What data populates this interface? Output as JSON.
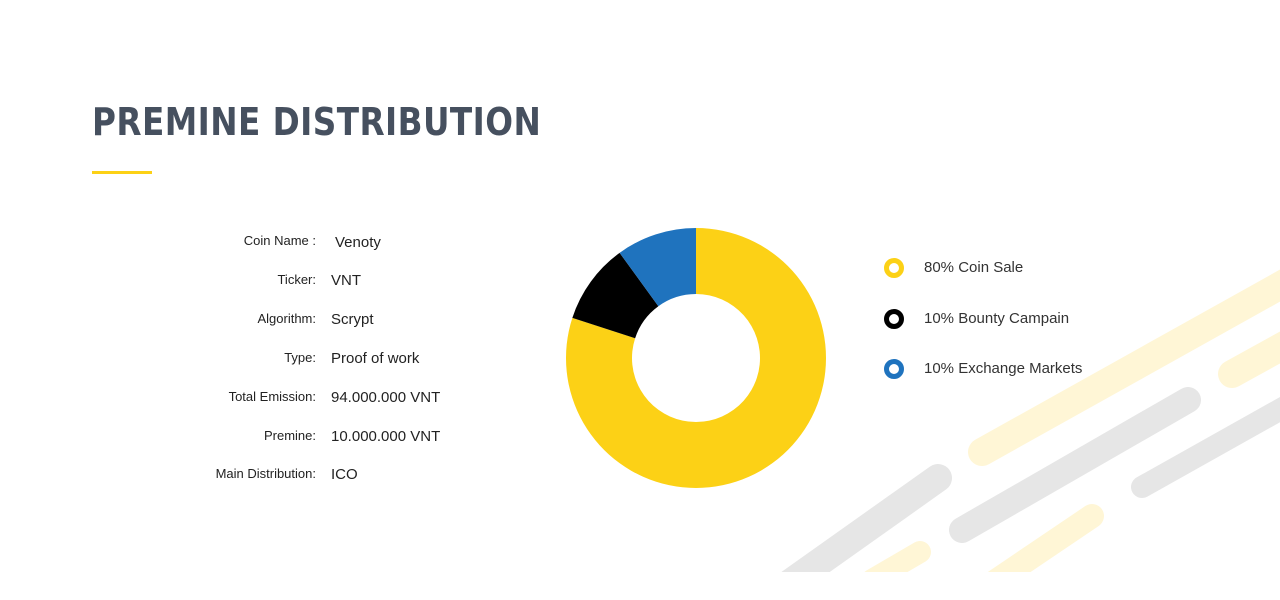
{
  "header": {
    "title": "PREMINE DISTRIBUTION"
  },
  "colors": {
    "accent": "#fcd116",
    "title": "#46505f",
    "stripe_gray": "#e6e6e6",
    "stripe_yellow": "#fff6d6"
  },
  "coin_info": [
    {
      "label": "Coin Name :",
      "value": "Venoty"
    },
    {
      "label": "Ticker:",
      "value": "VNT"
    },
    {
      "label": "Algorithm:",
      "value": "Scrypt"
    },
    {
      "label": "Type:",
      "value": "Proof of work"
    },
    {
      "label": "Total Emission:",
      "value": "94.000.000 VNT"
    },
    {
      "label": "Premine:",
      "value": "10.000.000 VNT"
    },
    {
      "label": "Main Distribution:",
      "value": "ICO"
    }
  ],
  "chart_data": {
    "type": "pie",
    "title": "",
    "donut": true,
    "slices": [
      {
        "label": "80% Coin Sale",
        "value": 80,
        "color": "#fcd116"
      },
      {
        "label": "10% Bounty Campain",
        "value": 10,
        "color": "#000000"
      },
      {
        "label": "10% Exchange Markets",
        "value": 10,
        "color": "#1f73be"
      }
    ],
    "legend": "right"
  }
}
